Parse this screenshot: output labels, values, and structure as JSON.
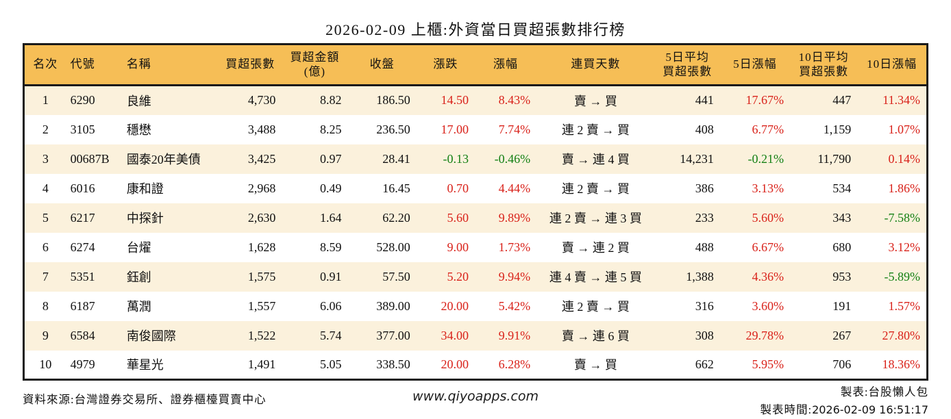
{
  "title": "2026-02-09 上櫃:外資當日買超張數排行榜",
  "palette": {
    "header_bg": "#f6be56",
    "row_alt_bg": "#fbf1dc",
    "row_bg": "#ffffff",
    "border": "#1a1a1a",
    "text": "#111111",
    "up": "#d9221a",
    "down": "#148014"
  },
  "table": {
    "columns": [
      {
        "key": "rank",
        "label": "名次"
      },
      {
        "key": "code",
        "label": "代號"
      },
      {
        "key": "name",
        "label": "名稱"
      },
      {
        "key": "net_buy_volume",
        "label": "買超張數"
      },
      {
        "key": "net_buy_amount",
        "label": "買超金額\n(億)"
      },
      {
        "key": "close",
        "label": "收盤"
      },
      {
        "key": "change",
        "label": "漲跌"
      },
      {
        "key": "change_pct",
        "label": "漲幅"
      },
      {
        "key": "streak",
        "label": "連買天數"
      },
      {
        "key": "avg5_volume",
        "label": "5日平均\n買超張數"
      },
      {
        "key": "pct5",
        "label": "5日漲幅"
      },
      {
        "key": "avg10_volume",
        "label": "10日平均\n買超張數"
      },
      {
        "key": "pct10",
        "label": "10日漲幅"
      }
    ],
    "rows": [
      {
        "rank": "1",
        "code": "6290",
        "name": "良維",
        "net_buy_volume": "4,730",
        "net_buy_amount": "8.82",
        "close": "186.50",
        "change": {
          "v": "14.50",
          "s": "up"
        },
        "change_pct": {
          "v": "8.43%",
          "s": "up"
        },
        "streak": "賣 → 買",
        "avg5_volume": "441",
        "pct5": {
          "v": "17.67%",
          "s": "up"
        },
        "avg10_volume": "447",
        "pct10": {
          "v": "11.34%",
          "s": "up"
        }
      },
      {
        "rank": "2",
        "code": "3105",
        "name": "穩懋",
        "net_buy_volume": "3,488",
        "net_buy_amount": "8.25",
        "close": "236.50",
        "change": {
          "v": "17.00",
          "s": "up"
        },
        "change_pct": {
          "v": "7.74%",
          "s": "up"
        },
        "streak": "連 2 賣 → 買",
        "avg5_volume": "408",
        "pct5": {
          "v": "6.77%",
          "s": "up"
        },
        "avg10_volume": "1,159",
        "pct10": {
          "v": "1.07%",
          "s": "up"
        }
      },
      {
        "rank": "3",
        "code": "00687B",
        "name": "國泰20年美債",
        "net_buy_volume": "3,425",
        "net_buy_amount": "0.97",
        "close": "28.41",
        "change": {
          "v": "-0.13",
          "s": "down"
        },
        "change_pct": {
          "v": "-0.46%",
          "s": "down"
        },
        "streak": "賣 → 連 4 買",
        "avg5_volume": "14,231",
        "pct5": {
          "v": "-0.21%",
          "s": "down"
        },
        "avg10_volume": "11,790",
        "pct10": {
          "v": "0.14%",
          "s": "up"
        }
      },
      {
        "rank": "4",
        "code": "6016",
        "name": "康和證",
        "net_buy_volume": "2,968",
        "net_buy_amount": "0.49",
        "close": "16.45",
        "change": {
          "v": "0.70",
          "s": "up"
        },
        "change_pct": {
          "v": "4.44%",
          "s": "up"
        },
        "streak": "連 2 賣 → 買",
        "avg5_volume": "386",
        "pct5": {
          "v": "3.13%",
          "s": "up"
        },
        "avg10_volume": "534",
        "pct10": {
          "v": "1.86%",
          "s": "up"
        }
      },
      {
        "rank": "5",
        "code": "6217",
        "name": "中探針",
        "net_buy_volume": "2,630",
        "net_buy_amount": "1.64",
        "close": "62.20",
        "change": {
          "v": "5.60",
          "s": "up"
        },
        "change_pct": {
          "v": "9.89%",
          "s": "up"
        },
        "streak": "連 2 賣 → 連 3 買",
        "avg5_volume": "233",
        "pct5": {
          "v": "5.60%",
          "s": "up"
        },
        "avg10_volume": "343",
        "pct10": {
          "v": "-7.58%",
          "s": "down"
        }
      },
      {
        "rank": "6",
        "code": "6274",
        "name": "台燿",
        "net_buy_volume": "1,628",
        "net_buy_amount": "8.59",
        "close": "528.00",
        "change": {
          "v": "9.00",
          "s": "up"
        },
        "change_pct": {
          "v": "1.73%",
          "s": "up"
        },
        "streak": "賣 → 連 2 買",
        "avg5_volume": "488",
        "pct5": {
          "v": "6.67%",
          "s": "up"
        },
        "avg10_volume": "680",
        "pct10": {
          "v": "3.12%",
          "s": "up"
        }
      },
      {
        "rank": "7",
        "code": "5351",
        "name": "鈺創",
        "net_buy_volume": "1,575",
        "net_buy_amount": "0.91",
        "close": "57.50",
        "change": {
          "v": "5.20",
          "s": "up"
        },
        "change_pct": {
          "v": "9.94%",
          "s": "up"
        },
        "streak": "連 4 賣 → 連 5 買",
        "avg5_volume": "1,388",
        "pct5": {
          "v": "4.36%",
          "s": "up"
        },
        "avg10_volume": "953",
        "pct10": {
          "v": "-5.89%",
          "s": "down"
        }
      },
      {
        "rank": "8",
        "code": "6187",
        "name": "萬潤",
        "net_buy_volume": "1,557",
        "net_buy_amount": "6.06",
        "close": "389.00",
        "change": {
          "v": "20.00",
          "s": "up"
        },
        "change_pct": {
          "v": "5.42%",
          "s": "up"
        },
        "streak": "連 2 賣 → 買",
        "avg5_volume": "316",
        "pct5": {
          "v": "3.60%",
          "s": "up"
        },
        "avg10_volume": "191",
        "pct10": {
          "v": "1.57%",
          "s": "up"
        }
      },
      {
        "rank": "9",
        "code": "6584",
        "name": "南俊國際",
        "net_buy_volume": "1,522",
        "net_buy_amount": "5.74",
        "close": "377.00",
        "change": {
          "v": "34.00",
          "s": "up"
        },
        "change_pct": {
          "v": "9.91%",
          "s": "up"
        },
        "streak": "賣 → 連 6 買",
        "avg5_volume": "308",
        "pct5": {
          "v": "29.78%",
          "s": "up"
        },
        "avg10_volume": "267",
        "pct10": {
          "v": "27.80%",
          "s": "up"
        }
      },
      {
        "rank": "10",
        "code": "4979",
        "name": "華星光",
        "net_buy_volume": "1,491",
        "net_buy_amount": "5.05",
        "close": "338.50",
        "change": {
          "v": "20.00",
          "s": "up"
        },
        "change_pct": {
          "v": "6.28%",
          "s": "up"
        },
        "streak": "賣 → 買",
        "avg5_volume": "662",
        "pct5": {
          "v": "5.95%",
          "s": "up"
        },
        "avg10_volume": "706",
        "pct10": {
          "v": "18.36%",
          "s": "up"
        }
      }
    ]
  },
  "footer": {
    "source": "資料來源:台灣證券交易所、證券櫃檯買賣中心",
    "website": "www.qiyoapps.com",
    "maker": "製表:台股懶人包",
    "made_time_label": "製表時間:",
    "made_time": "2026-02-09 16:51:17"
  }
}
